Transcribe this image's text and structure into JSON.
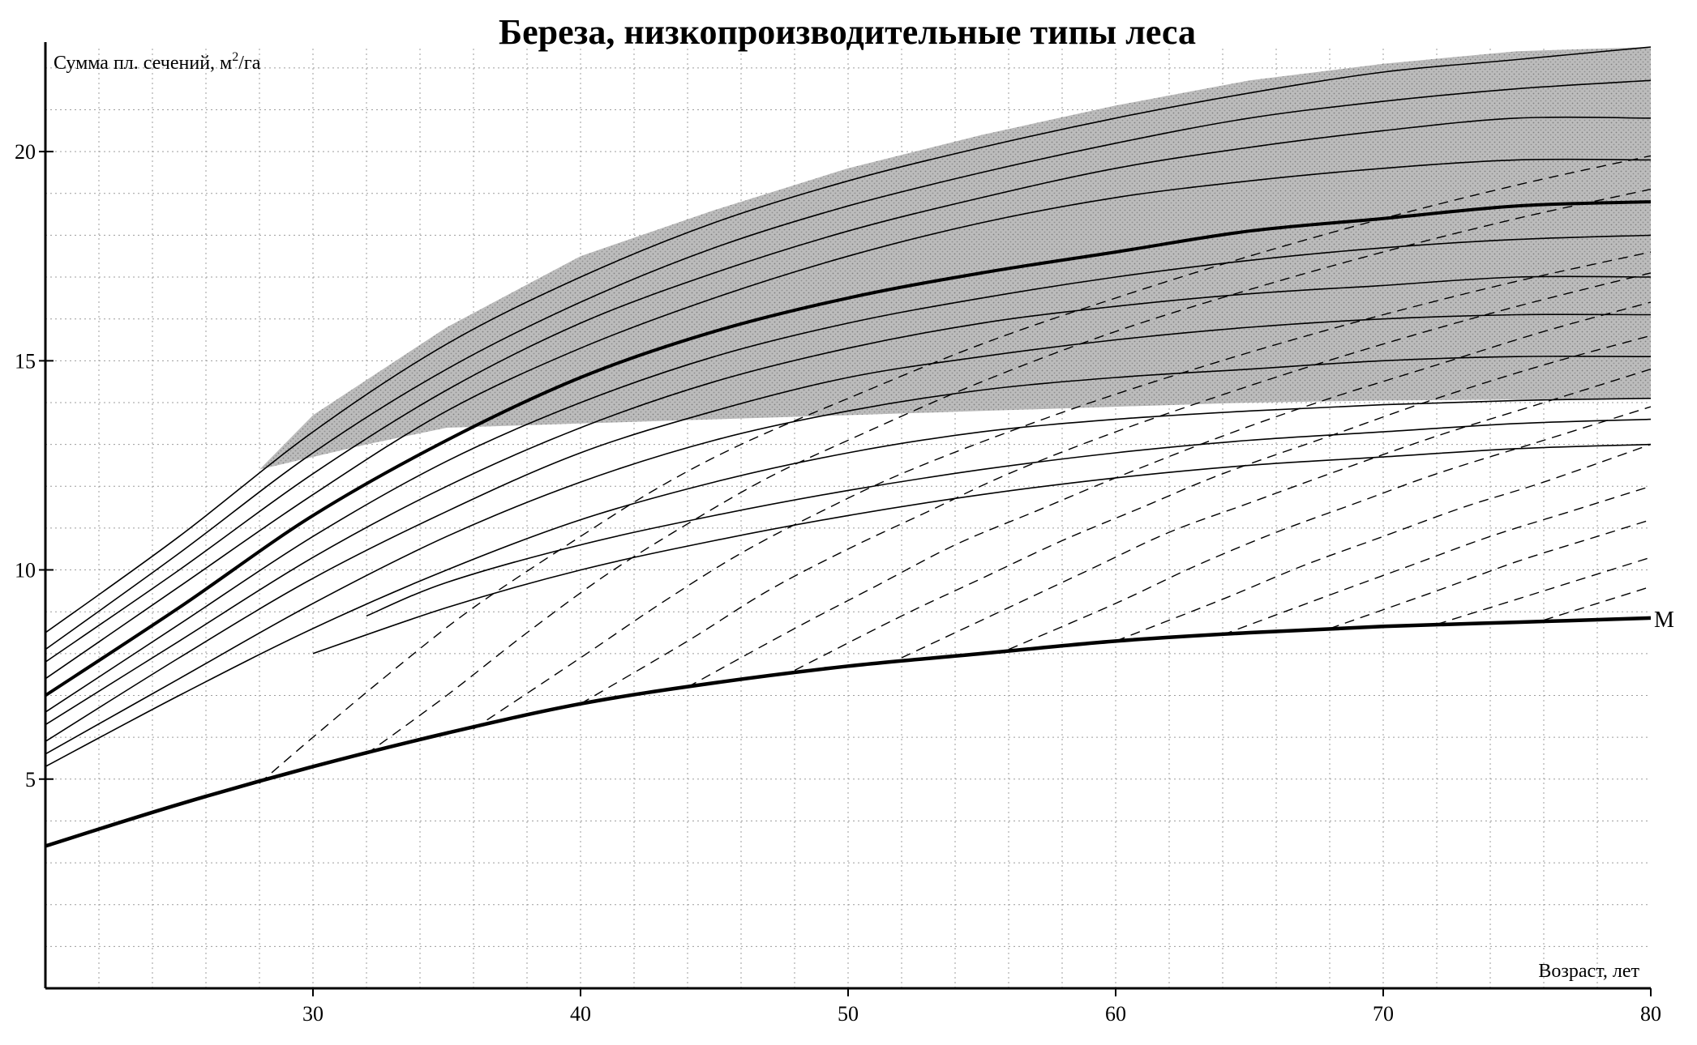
{
  "chart_data": {
    "type": "line",
    "title": "Береза, низкопроизводительные типы леса",
    "ylabel": "Сумма пл. сечений, м²/га",
    "ylabel_main": "Сумма пл. сечений, м",
    "ylabel_sup": "2",
    "ylabel_unit": "/га",
    "xlabel": "Возраст, лет",
    "xlim": [
      20,
      80
    ],
    "ylim": [
      0,
      22.5
    ],
    "x_ticks": [
      30,
      40,
      50,
      60,
      70,
      80
    ],
    "x_tick_labels": [
      "30",
      "40",
      "50",
      "60",
      "70",
      "80"
    ],
    "y_ticks": [
      5,
      10,
      15,
      20
    ],
    "y_tick_labels": [
      "5",
      "10",
      "15",
      "20"
    ],
    "grid": true,
    "grid_style": "dotted",
    "min_curve_label": "M",
    "shaded_band": {
      "upper": [
        [
          28,
          12.4
        ],
        [
          30,
          13.7
        ],
        [
          35,
          15.8
        ],
        [
          40,
          17.5
        ],
        [
          45,
          18.6
        ],
        [
          50,
          19.6
        ],
        [
          55,
          20.4
        ],
        [
          60,
          21.1
        ],
        [
          65,
          21.7
        ],
        [
          70,
          22.1
        ],
        [
          75,
          22.4
        ],
        [
          80,
          22.5
        ]
      ],
      "lower": [
        [
          28,
          12.4
        ],
        [
          32,
          13.0
        ],
        [
          35,
          13.4
        ],
        [
          40,
          13.5
        ],
        [
          45,
          13.6
        ],
        [
          50,
          13.7
        ],
        [
          55,
          13.8
        ],
        [
          60,
          13.9
        ],
        [
          65,
          14.0
        ],
        [
          70,
          14.05
        ],
        [
          80,
          14.1
        ]
      ],
      "color": "#9a9a9a"
    },
    "series": [
      {
        "style": "thin",
        "values": [
          [
            20,
            8.5
          ],
          [
            25,
            10.8
          ],
          [
            30,
            13.3
          ],
          [
            35,
            15.4
          ],
          [
            40,
            17.0
          ],
          [
            45,
            18.3
          ],
          [
            50,
            19.3
          ],
          [
            55,
            20.1
          ],
          [
            60,
            20.8
          ],
          [
            65,
            21.4
          ],
          [
            70,
            21.9
          ],
          [
            75,
            22.2
          ],
          [
            80,
            22.5
          ]
        ]
      },
      {
        "style": "thin",
        "values": [
          [
            20,
            8.1
          ],
          [
            25,
            10.4
          ],
          [
            30,
            12.8
          ],
          [
            35,
            14.8
          ],
          [
            40,
            16.4
          ],
          [
            45,
            17.7
          ],
          [
            50,
            18.7
          ],
          [
            55,
            19.5
          ],
          [
            60,
            20.2
          ],
          [
            65,
            20.8
          ],
          [
            70,
            21.2
          ],
          [
            75,
            21.5
          ],
          [
            80,
            21.7
          ]
        ]
      },
      {
        "style": "thin",
        "values": [
          [
            20,
            7.8
          ],
          [
            25,
            10.0
          ],
          [
            30,
            12.3
          ],
          [
            35,
            14.3
          ],
          [
            40,
            15.9
          ],
          [
            45,
            17.1
          ],
          [
            50,
            18.1
          ],
          [
            55,
            18.9
          ],
          [
            60,
            19.6
          ],
          [
            65,
            20.1
          ],
          [
            70,
            20.5
          ],
          [
            75,
            20.8
          ],
          [
            80,
            20.8
          ]
        ]
      },
      {
        "style": "thin",
        "values": [
          [
            20,
            7.4
          ],
          [
            25,
            9.6
          ],
          [
            30,
            11.8
          ],
          [
            35,
            13.8
          ],
          [
            40,
            15.3
          ],
          [
            45,
            16.5
          ],
          [
            50,
            17.5
          ],
          [
            55,
            18.3
          ],
          [
            60,
            18.9
          ],
          [
            65,
            19.3
          ],
          [
            70,
            19.6
          ],
          [
            75,
            19.8
          ],
          [
            80,
            19.8
          ]
        ]
      },
      {
        "style": "thick",
        "values": [
          [
            20,
            7.0
          ],
          [
            25,
            9.1
          ],
          [
            30,
            11.3
          ],
          [
            35,
            13.1
          ],
          [
            40,
            14.6
          ],
          [
            45,
            15.7
          ],
          [
            50,
            16.5
          ],
          [
            55,
            17.1
          ],
          [
            60,
            17.6
          ],
          [
            65,
            18.1
          ],
          [
            70,
            18.4
          ],
          [
            75,
            18.7
          ],
          [
            80,
            18.8
          ]
        ]
      },
      {
        "style": "thin",
        "values": [
          [
            20,
            6.6
          ],
          [
            25,
            8.7
          ],
          [
            30,
            10.8
          ],
          [
            35,
            12.6
          ],
          [
            40,
            14.0
          ],
          [
            45,
            15.1
          ],
          [
            50,
            15.9
          ],
          [
            55,
            16.5
          ],
          [
            60,
            17.0
          ],
          [
            65,
            17.4
          ],
          [
            70,
            17.7
          ],
          [
            75,
            17.9
          ],
          [
            80,
            18.0
          ]
        ]
      },
      {
        "style": "thin",
        "values": [
          [
            20,
            6.3
          ],
          [
            25,
            8.3
          ],
          [
            30,
            10.3
          ],
          [
            35,
            12.0
          ],
          [
            40,
            13.4
          ],
          [
            45,
            14.5
          ],
          [
            50,
            15.3
          ],
          [
            55,
            15.9
          ],
          [
            60,
            16.3
          ],
          [
            65,
            16.6
          ],
          [
            70,
            16.8
          ],
          [
            75,
            17.0
          ],
          [
            80,
            17.0
          ]
        ]
      },
      {
        "style": "thin",
        "values": [
          [
            20,
            5.9
          ],
          [
            25,
            7.9
          ],
          [
            30,
            9.8
          ],
          [
            35,
            11.4
          ],
          [
            40,
            12.8
          ],
          [
            45,
            13.8
          ],
          [
            50,
            14.6
          ],
          [
            55,
            15.1
          ],
          [
            60,
            15.5
          ],
          [
            65,
            15.8
          ],
          [
            70,
            16.0
          ],
          [
            75,
            16.1
          ],
          [
            80,
            16.1
          ]
        ]
      },
      {
        "style": "thin",
        "values": [
          [
            20,
            5.6
          ],
          [
            25,
            7.4
          ],
          [
            30,
            9.2
          ],
          [
            35,
            10.8
          ],
          [
            40,
            12.1
          ],
          [
            45,
            13.1
          ],
          [
            50,
            13.8
          ],
          [
            55,
            14.3
          ],
          [
            60,
            14.6
          ],
          [
            65,
            14.8
          ],
          [
            70,
            15.0
          ],
          [
            75,
            15.1
          ],
          [
            80,
            15.1
          ]
        ]
      },
      {
        "style": "thin",
        "values": [
          [
            20,
            5.3
          ],
          [
            25,
            7.0
          ],
          [
            30,
            8.6
          ],
          [
            35,
            10.0
          ],
          [
            40,
            11.2
          ],
          [
            45,
            12.1
          ],
          [
            50,
            12.8
          ],
          [
            55,
            13.3
          ],
          [
            60,
            13.6
          ],
          [
            65,
            13.8
          ],
          [
            70,
            13.95
          ],
          [
            75,
            14.05
          ],
          [
            80,
            14.1
          ]
        ]
      },
      {
        "style": "thin",
        "values": [
          [
            32,
            8.9
          ],
          [
            35,
            9.7
          ],
          [
            40,
            10.6
          ],
          [
            45,
            11.3
          ],
          [
            50,
            11.9
          ],
          [
            55,
            12.4
          ],
          [
            60,
            12.8
          ],
          [
            65,
            13.1
          ],
          [
            70,
            13.3
          ],
          [
            75,
            13.5
          ],
          [
            80,
            13.6
          ]
        ]
      },
      {
        "style": "thin",
        "values": [
          [
            30,
            8.0
          ],
          [
            35,
            9.1
          ],
          [
            40,
            10.0
          ],
          [
            45,
            10.7
          ],
          [
            50,
            11.3
          ],
          [
            55,
            11.8
          ],
          [
            60,
            12.2
          ],
          [
            65,
            12.5
          ],
          [
            70,
            12.7
          ],
          [
            75,
            12.9
          ],
          [
            80,
            13.0
          ]
        ]
      },
      {
        "style": "min",
        "name": "M",
        "values": [
          [
            20,
            3.4
          ],
          [
            25,
            4.4
          ],
          [
            30,
            5.3
          ],
          [
            35,
            6.1
          ],
          [
            40,
            6.8
          ],
          [
            45,
            7.3
          ],
          [
            50,
            7.7
          ],
          [
            55,
            8.0
          ],
          [
            60,
            8.3
          ],
          [
            65,
            8.5
          ],
          [
            70,
            8.65
          ],
          [
            75,
            8.75
          ],
          [
            80,
            8.85
          ]
        ]
      }
    ],
    "dashed_lines": [
      {
        "values": [
          [
            28,
            4.9
          ],
          [
            30,
            6.0
          ],
          [
            33,
            7.6
          ],
          [
            36,
            9.1
          ],
          [
            40,
            10.8
          ],
          [
            43,
            12.0
          ],
          [
            46,
            13.0
          ],
          [
            50,
            14.1
          ],
          [
            55,
            15.4
          ],
          [
            60,
            16.5
          ],
          [
            65,
            17.5
          ],
          [
            70,
            18.4
          ],
          [
            75,
            19.2
          ],
          [
            80,
            19.9
          ]
        ]
      },
      {
        "values": [
          [
            32,
            5.6
          ],
          [
            35,
            7.0
          ],
          [
            38,
            8.5
          ],
          [
            41,
            9.9
          ],
          [
            44,
            11.1
          ],
          [
            47,
            12.2
          ],
          [
            50,
            13.1
          ],
          [
            55,
            14.5
          ],
          [
            60,
            15.7
          ],
          [
            65,
            16.7
          ],
          [
            70,
            17.6
          ],
          [
            75,
            18.4
          ],
          [
            80,
            19.1
          ]
        ]
      },
      {
        "values": [
          [
            36,
            6.2
          ],
          [
            40,
            7.9
          ],
          [
            43,
            9.2
          ],
          [
            46,
            10.4
          ],
          [
            49,
            11.4
          ],
          [
            52,
            12.3
          ],
          [
            56,
            13.3
          ],
          [
            60,
            14.2
          ],
          [
            65,
            15.2
          ],
          [
            70,
            16.1
          ],
          [
            75,
            16.9
          ],
          [
            80,
            17.6
          ]
        ]
      },
      {
        "values": [
          [
            40,
            6.8
          ],
          [
            44,
            8.3
          ],
          [
            47,
            9.5
          ],
          [
            50,
            10.5
          ],
          [
            53,
            11.4
          ],
          [
            56,
            12.3
          ],
          [
            60,
            13.3
          ],
          [
            65,
            14.4
          ],
          [
            70,
            15.4
          ],
          [
            75,
            16.3
          ],
          [
            80,
            17.1
          ]
        ]
      },
      {
        "values": [
          [
            44,
            7.2
          ],
          [
            48,
            8.6
          ],
          [
            51,
            9.6
          ],
          [
            54,
            10.6
          ],
          [
            57,
            11.4
          ],
          [
            60,
            12.2
          ],
          [
            64,
            13.2
          ],
          [
            68,
            14.1
          ],
          [
            72,
            14.9
          ],
          [
            76,
            15.7
          ],
          [
            80,
            16.4
          ]
        ]
      },
      {
        "values": [
          [
            48,
            7.6
          ],
          [
            52,
            8.9
          ],
          [
            55,
            9.8
          ],
          [
            58,
            10.7
          ],
          [
            61,
            11.5
          ],
          [
            64,
            12.3
          ],
          [
            68,
            13.2
          ],
          [
            72,
            14.1
          ],
          [
            76,
            14.9
          ],
          [
            80,
            15.6
          ]
        ]
      },
      {
        "values": [
          [
            52,
            7.9
          ],
          [
            56,
            9.1
          ],
          [
            59,
            10.0
          ],
          [
            62,
            10.9
          ],
          [
            65,
            11.6
          ],
          [
            68,
            12.3
          ],
          [
            72,
            13.2
          ],
          [
            76,
            14.0
          ],
          [
            80,
            14.8
          ]
        ]
      },
      {
        "values": [
          [
            56,
            8.1
          ],
          [
            60,
            9.2
          ],
          [
            63,
            10.1
          ],
          [
            66,
            10.9
          ],
          [
            69,
            11.6
          ],
          [
            72,
            12.3
          ],
          [
            76,
            13.1
          ],
          [
            80,
            13.9
          ]
        ]
      },
      {
        "values": [
          [
            60,
            8.3
          ],
          [
            64,
            9.3
          ],
          [
            67,
            10.1
          ],
          [
            70,
            10.8
          ],
          [
            73,
            11.5
          ],
          [
            76,
            12.1
          ],
          [
            80,
            13.0
          ]
        ]
      },
      {
        "values": [
          [
            64,
            8.45
          ],
          [
            68,
            9.4
          ],
          [
            71,
            10.1
          ],
          [
            74,
            10.8
          ],
          [
            77,
            11.4
          ],
          [
            80,
            12.0
          ]
        ]
      },
      {
        "values": [
          [
            68,
            8.6
          ],
          [
            72,
            9.5
          ],
          [
            75,
            10.2
          ],
          [
            78,
            10.8
          ],
          [
            80,
            11.2
          ]
        ]
      },
      {
        "values": [
          [
            72,
            8.7
          ],
          [
            75,
            9.3
          ],
          [
            78,
            9.9
          ],
          [
            80,
            10.3
          ]
        ]
      },
      {
        "values": [
          [
            76,
            8.8
          ],
          [
            78,
            9.2
          ],
          [
            80,
            9.6
          ]
        ]
      }
    ]
  }
}
